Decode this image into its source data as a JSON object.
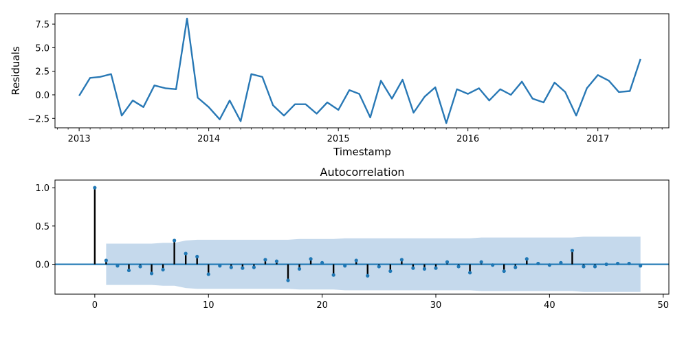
{
  "chart_data": [
    {
      "type": "line",
      "title": "",
      "xlabel": "Timestamp",
      "ylabel": "Residuals",
      "ylim": [
        -3.5,
        8.6
      ],
      "xlim": [
        "2012-10-25",
        "2017-07-20"
      ],
      "yticks": [
        "−2.5",
        "0.0",
        "2.5",
        "5.0",
        "7.5"
      ],
      "xticks": [
        "2013",
        "2014",
        "2015",
        "2016",
        "2017"
      ],
      "grid": false,
      "color": "#2878b5",
      "series": [
        {
          "x": [
            "2013-01",
            "2013-02",
            "2013-03",
            "2013-04",
            "2013-05",
            "2013-06",
            "2013-07",
            "2013-08",
            "2013-09",
            "2013-10",
            "2013-11",
            "2013-12",
            "2014-01",
            "2014-02",
            "2014-03",
            "2014-04",
            "2014-05",
            "2014-06",
            "2014-07",
            "2014-08",
            "2014-09",
            "2014-10",
            "2014-11",
            "2014-12",
            "2015-01",
            "2015-02",
            "2015-03",
            "2015-04",
            "2015-05",
            "2015-06",
            "2015-07",
            "2015-08",
            "2015-09",
            "2015-10",
            "2015-11",
            "2015-12",
            "2016-01",
            "2016-02",
            "2016-03",
            "2016-04",
            "2016-05",
            "2016-06",
            "2016-07",
            "2016-08",
            "2016-09",
            "2016-10",
            "2016-11",
            "2016-12",
            "2017-01",
            "2017-02",
            "2017-03",
            "2017-04",
            "2017-05"
          ],
          "values": [
            -0.1,
            1.8,
            1.9,
            2.2,
            -2.2,
            -0.6,
            -1.3,
            1.0,
            0.7,
            0.6,
            8.1,
            -0.3,
            -1.3,
            -2.6,
            -0.6,
            -2.8,
            2.2,
            1.9,
            -1.1,
            -2.2,
            -1.0,
            -1.0,
            -2.0,
            -0.8,
            -1.6,
            0.5,
            0.1,
            -2.4,
            1.5,
            -0.4,
            1.6,
            -1.9,
            -0.2,
            0.8,
            -3.0,
            0.6,
            0.1,
            0.7,
            -0.6,
            0.6,
            0.0,
            1.4,
            -0.4,
            -0.8,
            1.3,
            0.3,
            -2.2,
            0.7,
            2.1,
            1.5,
            0.3,
            0.4,
            3.8
          ]
        }
      ]
    },
    {
      "type": "stem",
      "title": "Autocorrelation",
      "xlabel": "",
      "ylabel": "",
      "xlim": [
        -3.5,
        50.5
      ],
      "ylim": [
        -0.39,
        1.1
      ],
      "xticks": [
        "0",
        "10",
        "20",
        "30",
        "40",
        "50"
      ],
      "yticks": [
        "0.0",
        "0.5",
        "1.0"
      ],
      "grid": false,
      "stem_color": "#000000",
      "marker_color": "#1f77b4",
      "confint_color": "#c5d9ec",
      "lags": [
        0,
        1,
        2,
        3,
        4,
        5,
        6,
        7,
        8,
        9,
        10,
        11,
        12,
        13,
        14,
        15,
        16,
        17,
        18,
        19,
        20,
        21,
        22,
        23,
        24,
        25,
        26,
        27,
        28,
        29,
        30,
        31,
        32,
        33,
        34,
        35,
        36,
        37,
        38,
        39,
        40,
        41,
        42,
        43,
        44,
        45,
        46,
        47,
        48
      ],
      "values": [
        1.0,
        0.05,
        -0.02,
        -0.08,
        -0.03,
        -0.12,
        -0.07,
        0.31,
        0.14,
        0.1,
        -0.13,
        -0.02,
        -0.04,
        -0.05,
        -0.04,
        0.06,
        0.04,
        -0.21,
        -0.06,
        0.07,
        0.02,
        -0.14,
        -0.02,
        0.05,
        -0.15,
        -0.03,
        -0.09,
        0.06,
        -0.05,
        -0.06,
        -0.05,
        0.03,
        -0.03,
        -0.11,
        0.03,
        -0.01,
        -0.09,
        -0.04,
        0.07,
        0.01,
        -0.01,
        0.02,
        0.18,
        -0.03,
        -0.03,
        0.0,
        0.01,
        0.01,
        -0.02
      ],
      "confint_upper": [
        null,
        0.27,
        0.27,
        0.27,
        0.27,
        0.27,
        0.28,
        0.28,
        0.31,
        0.32,
        0.32,
        0.32,
        0.32,
        0.32,
        0.32,
        0.32,
        0.32,
        0.32,
        0.33,
        0.33,
        0.33,
        0.33,
        0.34,
        0.34,
        0.34,
        0.34,
        0.34,
        0.34,
        0.34,
        0.34,
        0.34,
        0.34,
        0.34,
        0.34,
        0.35,
        0.35,
        0.35,
        0.35,
        0.35,
        0.35,
        0.35,
        0.35,
        0.35,
        0.36,
        0.36,
        0.36,
        0.36,
        0.36,
        0.36
      ],
      "confint_lower": [
        null,
        -0.27,
        -0.27,
        -0.27,
        -0.27,
        -0.27,
        -0.28,
        -0.28,
        -0.31,
        -0.32,
        -0.32,
        -0.32,
        -0.32,
        -0.32,
        -0.32,
        -0.32,
        -0.32,
        -0.32,
        -0.33,
        -0.33,
        -0.33,
        -0.33,
        -0.34,
        -0.34,
        -0.34,
        -0.34,
        -0.34,
        -0.34,
        -0.34,
        -0.34,
        -0.34,
        -0.34,
        -0.34,
        -0.34,
        -0.35,
        -0.35,
        -0.35,
        -0.35,
        -0.35,
        -0.35,
        -0.35,
        -0.35,
        -0.35,
        -0.36,
        -0.36,
        -0.36,
        -0.36,
        -0.36,
        -0.36
      ]
    }
  ]
}
